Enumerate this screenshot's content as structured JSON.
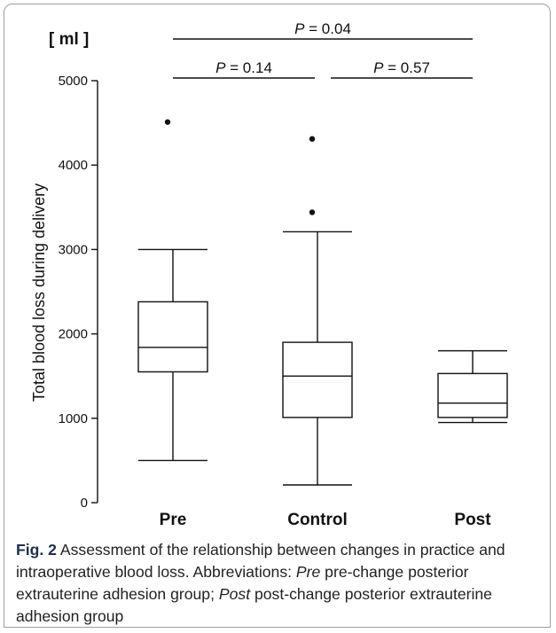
{
  "chart_data": {
    "type": "box",
    "unit_label": "[ ml ]",
    "ylabel": "Total blood loss during delivery",
    "xlabel": "",
    "ylim": [
      0,
      5000
    ],
    "yticks": [
      0,
      1000,
      2000,
      3000,
      4000,
      5000
    ],
    "grid": false,
    "categories": [
      "Pre",
      "Control",
      "Post"
    ],
    "boxes": [
      {
        "name": "Pre",
        "whisker_low": 500,
        "q1": 1550,
        "median": 1840,
        "q3": 2380,
        "whisker_high": 3000,
        "outliers": [
          4510
        ]
      },
      {
        "name": "Control",
        "whisker_low": 210,
        "q1": 1010,
        "median": 1500,
        "q3": 1900,
        "whisker_high": 3210,
        "outliers": [
          3440,
          4310
        ]
      },
      {
        "name": "Post",
        "whisker_low": 950,
        "q1": 1010,
        "median": 1180,
        "q3": 1530,
        "whisker_high": 1800,
        "outliers": []
      }
    ],
    "significance": [
      {
        "from": "Pre",
        "to": "Post",
        "label_italic": "P",
        "label_value": " = 0.04"
      },
      {
        "from": "Pre",
        "to": "Control",
        "label_italic": "P",
        "label_value": " = 0.14"
      },
      {
        "from": "Control",
        "to": "Post",
        "label_italic": "P",
        "label_value": " = 0.57"
      }
    ]
  },
  "caption": {
    "fig_label": "Fig. 2",
    "text_1": "  Assessment of the relationship between changes in practice and intraoperative blood loss. Abbreviations: ",
    "abbr_1": "Pre",
    "text_2": " pre-change posterior extrauterine adhesion group; ",
    "abbr_2": "Post",
    "text_3": " post-change posterior extrauterine adhesion group"
  },
  "colors": {
    "ink": "#111111",
    "fig_label": "#1f2f4f",
    "border": "#9aa0a6"
  }
}
